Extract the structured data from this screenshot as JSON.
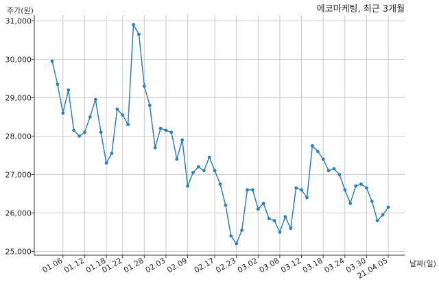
{
  "chart_data": {
    "type": "line",
    "title": "에코마케팅, 최근 3개월",
    "ylabel": "주가(원)",
    "xlabel": "날짜(일)",
    "ylim": [
      24900,
      31150
    ],
    "y_ticks": [
      25000,
      26000,
      27000,
      28000,
      29000,
      30000,
      31000
    ],
    "y_tick_labels": [
      "25,000",
      "26,000",
      "27,000",
      "28,000",
      "29,000",
      "30,000",
      "31,000"
    ],
    "x_tick_labels": [
      "01.06",
      "01.12",
      "01.18",
      "01.22",
      "01.28",
      "02.03",
      "02.09",
      "02.17",
      "02.23",
      "03.02",
      "03.08",
      "03.12",
      "03.18",
      "03.24",
      "03.30",
      "21.04.05"
    ],
    "x_tick_indices": [
      2,
      6,
      10,
      13,
      17,
      21,
      25,
      30,
      34,
      38,
      42,
      46,
      50,
      54,
      58,
      62
    ],
    "grid": true,
    "line_color": "#2e7fb8",
    "series": [
      {
        "values": [
          29950,
          29350,
          28600,
          29200,
          28150,
          28000,
          28100,
          28500,
          28950,
          28100,
          27300,
          27550,
          28700,
          28550,
          28300,
          30900,
          30650,
          29300,
          28800,
          27700,
          28200,
          28150,
          28100,
          27400,
          27900,
          26700,
          27050,
          27200,
          27100,
          27450,
          27100,
          26750,
          26200,
          25400,
          25200,
          25550,
          26600,
          26600,
          26100,
          26250,
          25850,
          25800,
          25500,
          25900,
          25600,
          26650,
          26600,
          26400,
          27750,
          27600,
          27400,
          27100,
          27150,
          27000,
          26600,
          26250,
          26700,
          26750,
          26650,
          26300,
          25800,
          25950,
          26150
        ]
      }
    ]
  }
}
